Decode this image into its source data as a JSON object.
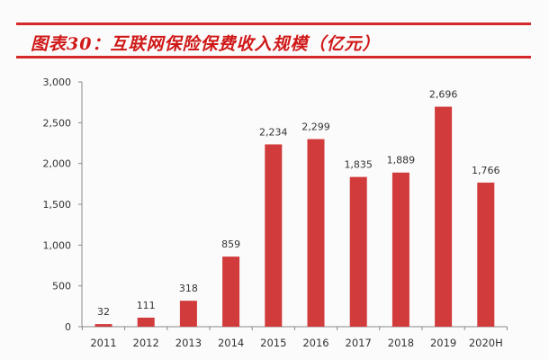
{
  "title": "图表30：互联网保险保费收入规模（亿元）",
  "colors": {
    "bar": "#d13b3b",
    "title": "#d01818",
    "rule": "#d42a2a",
    "axis": "#888888"
  },
  "chart_data": {
    "type": "bar",
    "title": "图表30：互联网保险保费收入规模（亿元）",
    "xlabel": "",
    "ylabel": "亿元",
    "categories": [
      "2011",
      "2012",
      "2013",
      "2014",
      "2015",
      "2016",
      "2017",
      "2018",
      "2019",
      "2020H"
    ],
    "values": [
      32,
      111,
      318,
      859,
      2234,
      2299,
      1835,
      1889,
      2696,
      1766
    ],
    "value_labels": [
      "32",
      "111",
      "318",
      "859",
      "2,234",
      "2,299",
      "1,835",
      "1,889",
      "2,696",
      "1,766"
    ],
    "ylim": [
      0,
      3000
    ],
    "yticks": [
      0,
      500,
      1000,
      1500,
      2000,
      2500,
      3000
    ],
    "ytick_labels": [
      "0",
      "500",
      "1,000",
      "1,500",
      "2,000",
      "2,500",
      "3,000"
    ],
    "grid": false,
    "legend": null
  }
}
